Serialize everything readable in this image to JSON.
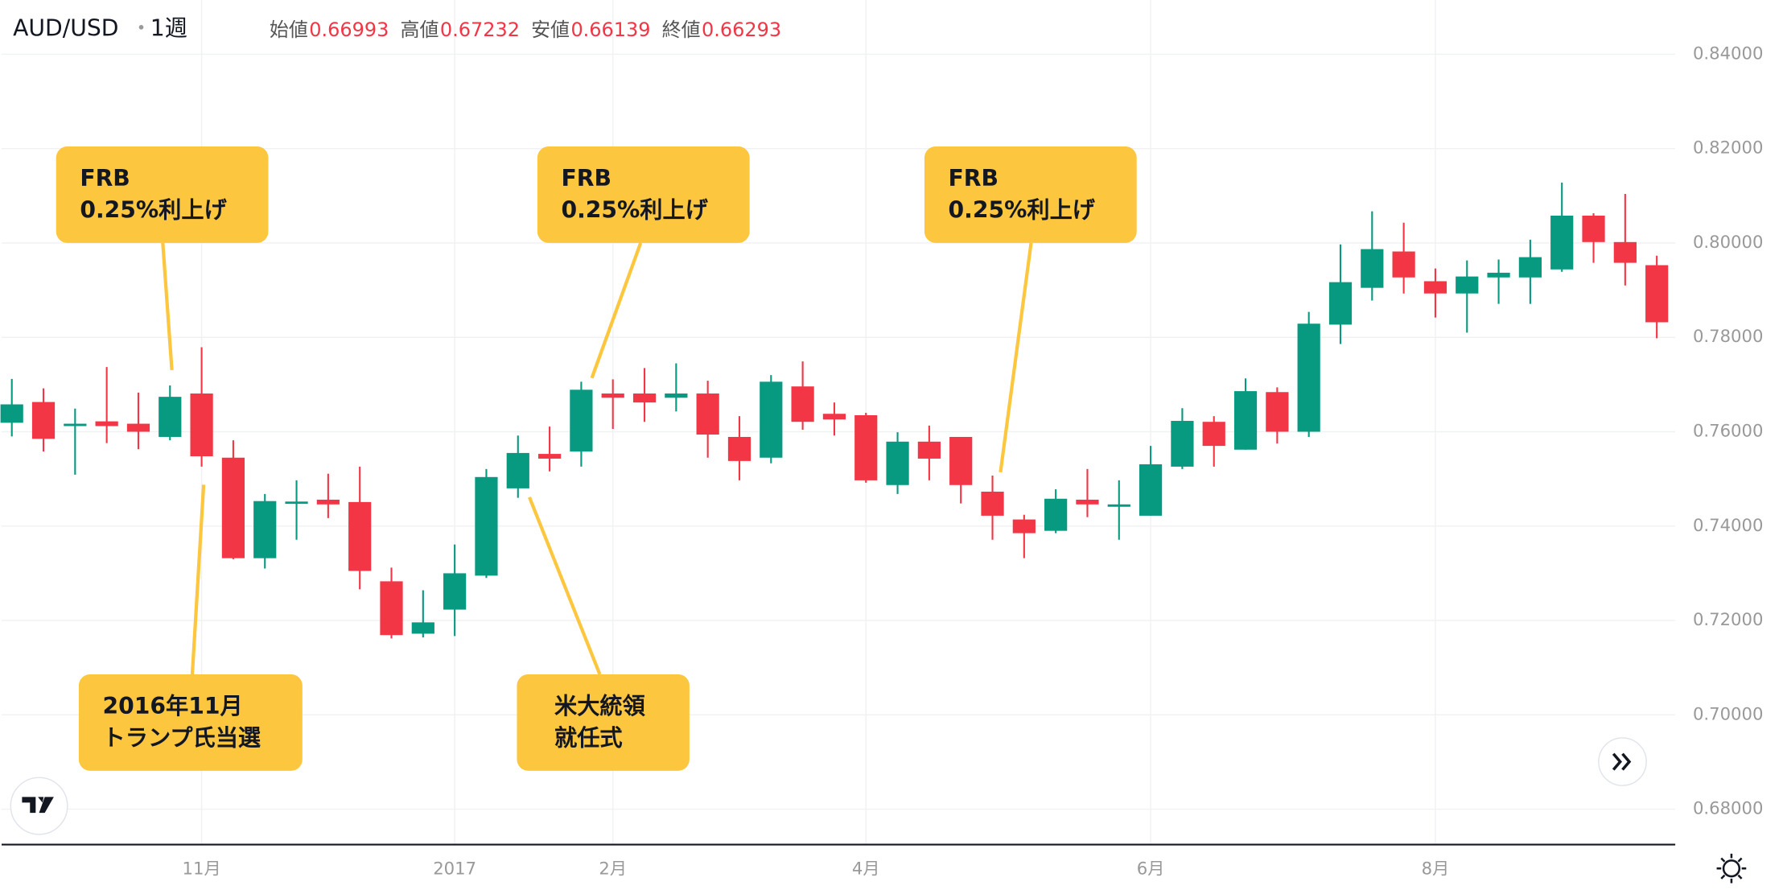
{
  "chart_data": {
    "type": "candlestick",
    "title": "AUD/USD",
    "interval": "1週",
    "ohlc_legend": [
      {
        "label": "始値",
        "value": 0.66993
      },
      {
        "label": "高値",
        "value": 0.67232
      },
      {
        "label": "安値",
        "value": 0.66139
      },
      {
        "label": "終値",
        "value": 0.66293
      }
    ],
    "up_color": "#089981",
    "down_color": "#f23645",
    "categories": [
      null,
      null,
      null,
      null,
      null,
      null,
      "11月",
      null,
      null,
      null,
      null,
      null,
      null,
      null,
      "2017",
      null,
      null,
      null,
      null,
      "2月",
      null,
      null,
      null,
      null,
      null,
      null,
      null,
      "4月",
      null,
      null,
      null,
      null,
      null,
      null,
      null,
      null,
      "6月",
      null,
      null,
      null,
      null,
      null,
      null,
      null,
      null,
      "8月",
      null,
      null,
      null,
      null,
      null,
      null,
      null
    ],
    "open": [
      0.7619,
      0.7663,
      0.7612,
      0.7622,
      0.7617,
      0.7589,
      0.7681,
      0.7545,
      0.7332,
      0.7449,
      0.7456,
      0.7451,
      0.7283,
      0.7172,
      0.7223,
      0.7295,
      0.748,
      0.7553,
      0.7558,
      0.7681,
      0.7681,
      0.7672,
      0.7681,
      0.7589,
      0.7545,
      0.7696,
      0.7638,
      0.7635,
      0.7487,
      0.7579,
      0.7589,
      0.7473,
      0.7414,
      0.739,
      0.7456,
      0.7441,
      0.7422,
      0.7526,
      0.7621,
      0.7562,
      0.7684,
      0.76,
      0.7827,
      0.7905,
      0.7982,
      0.7919,
      0.7893,
      0.7927,
      0.7927,
      0.7944,
      0.8058,
      0.8002,
      0.7953
    ],
    "high": [
      0.7712,
      0.7692,
      0.7649,
      0.7737,
      0.7683,
      0.7698,
      0.7779,
      0.7582,
      0.7468,
      0.7497,
      0.7511,
      0.7526,
      0.7312,
      0.7264,
      0.7361,
      0.7521,
      0.7592,
      0.7611,
      0.7706,
      0.7711,
      0.7735,
      0.7745,
      0.7708,
      0.7633,
      0.772,
      0.7749,
      0.7662,
      0.764,
      0.7599,
      0.7613,
      0.7589,
      0.7507,
      0.7424,
      0.7478,
      0.7521,
      0.7497,
      0.757,
      0.765,
      0.7633,
      0.7713,
      0.7694,
      0.7854,
      0.7997,
      0.8067,
      0.8043,
      0.7946,
      0.7963,
      0.7965,
      0.8007,
      0.8128,
      0.8063,
      0.8104,
      0.7973
    ],
    "low": [
      0.759,
      0.7558,
      0.7509,
      0.7576,
      0.7563,
      0.7582,
      0.7526,
      0.733,
      0.731,
      0.7371,
      0.7417,
      0.7266,
      0.7162,
      0.7164,
      0.7167,
      0.729,
      0.746,
      0.7516,
      0.7526,
      0.7606,
      0.7621,
      0.7643,
      0.7545,
      0.7497,
      0.7533,
      0.7604,
      0.7592,
      0.7492,
      0.7468,
      0.7497,
      0.7448,
      0.7371,
      0.7332,
      0.7385,
      0.7419,
      0.7371,
      0.7422,
      0.7521,
      0.7526,
      0.7562,
      0.7575,
      0.7589,
      0.7786,
      0.7878,
      0.7893,
      0.7842,
      0.781,
      0.7871,
      0.7871,
      0.7939,
      0.7958,
      0.791,
      0.7798
    ],
    "close": [
      0.7658,
      0.7585,
      0.7617,
      0.7612,
      0.76,
      0.7674,
      0.7548,
      0.7332,
      0.7453,
      0.7452,
      0.7446,
      0.7305,
      0.7169,
      0.7196,
      0.73,
      0.7504,
      0.7555,
      0.7543,
      0.7689,
      0.7672,
      0.7662,
      0.7681,
      0.7594,
      0.7538,
      0.7706,
      0.7621,
      0.7626,
      0.7497,
      0.7579,
      0.7543,
      0.7487,
      0.7422,
      0.7385,
      0.7458,
      0.7446,
      0.7446,
      0.7531,
      0.7623,
      0.757,
      0.7686,
      0.76,
      0.7829,
      0.7917,
      0.7987,
      0.7927,
      0.7893,
      0.7929,
      0.7937,
      0.797,
      0.8058,
      0.8002,
      0.7958,
      0.7832
    ],
    "ylim": [
      0.6725,
      0.8515
    ],
    "yticks": [
      {
        "value": 0.68,
        "label": "0.68000"
      },
      {
        "value": 0.7,
        "label": "0.70000"
      },
      {
        "value": 0.72,
        "label": "0.72000"
      },
      {
        "value": 0.74,
        "label": "0.74000"
      },
      {
        "value": 0.76,
        "label": "0.76000"
      },
      {
        "value": 0.78,
        "label": "0.78000"
      },
      {
        "value": 0.8,
        "label": "0.80000"
      },
      {
        "value": 0.82,
        "label": "0.82000"
      },
      {
        "value": 0.84,
        "label": "0.84000"
      }
    ],
    "grid": true,
    "annotations": [
      {
        "lines": [
          "FRB",
          "0.25%利上げ"
        ]
      },
      {
        "lines": [
          "FRB",
          "0.25%利上げ"
        ]
      },
      {
        "lines": [
          "FRB",
          "0.25%利上げ"
        ]
      },
      {
        "lines": [
          "2016年11月",
          "トランプ氏当選"
        ]
      },
      {
        "lines": [
          "米大統領",
          "就任式"
        ]
      }
    ],
    "annotation_color": "#fcc73e"
  }
}
